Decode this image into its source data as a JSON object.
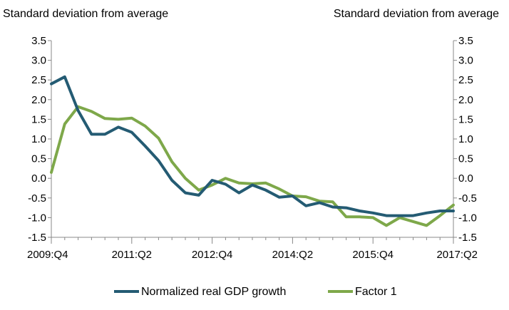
{
  "chart_data": {
    "type": "line",
    "title": "",
    "ylabel_left": "Standard deviation from average",
    "ylabel_right": "Standard deviation from average",
    "ylim": [
      -1.5,
      3.5
    ],
    "y_ticks": [
      "3.5",
      "3.0",
      "2.5",
      "2.0",
      "1.5",
      "1.0",
      "0.5",
      "0.0",
      "-0.5",
      "-1.0",
      "-1.5"
    ],
    "y_tick_values": [
      3.5,
      3.0,
      2.5,
      2.0,
      1.5,
      1.0,
      0.5,
      0.0,
      -0.5,
      -1.0,
      -1.5
    ],
    "x_tick_labels": [
      "2009:Q4",
      "2011:Q2",
      "2012:Q4",
      "2014:Q2",
      "2015:Q4",
      "2017:Q2"
    ],
    "x_tick_index": [
      0,
      6,
      12,
      18,
      24,
      30
    ],
    "x": [
      "2009:Q4",
      "2010:Q1",
      "2010:Q2",
      "2010:Q3",
      "2010:Q4",
      "2011:Q1",
      "2011:Q2",
      "2011:Q3",
      "2011:Q4",
      "2012:Q1",
      "2012:Q2",
      "2012:Q3",
      "2012:Q4",
      "2013:Q1",
      "2013:Q2",
      "2013:Q3",
      "2013:Q4",
      "2014:Q1",
      "2014:Q2",
      "2014:Q3",
      "2014:Q4",
      "2015:Q1",
      "2015:Q2",
      "2015:Q3",
      "2015:Q4",
      "2016:Q1",
      "2016:Q2",
      "2016:Q3",
      "2016:Q4",
      "2017:Q1",
      "2017:Q2"
    ],
    "grid": false,
    "legend_position": "bottom",
    "series": [
      {
        "name": "Normalized real GDP growth",
        "color": "#245b73",
        "values": [
          2.4,
          2.58,
          1.72,
          1.12,
          1.12,
          1.3,
          1.17,
          0.82,
          0.45,
          -0.05,
          -0.37,
          -0.43,
          -0.05,
          -0.15,
          -0.37,
          -0.17,
          -0.3,
          -0.48,
          -0.45,
          -0.7,
          -0.62,
          -0.73,
          -0.75,
          -0.83,
          -0.88,
          -0.95,
          -0.95,
          -0.95,
          -0.88,
          -0.83,
          -0.83
        ]
      },
      {
        "name": "Factor 1",
        "color": "#7ea84a",
        "values": [
          0.15,
          1.38,
          1.82,
          1.7,
          1.52,
          1.5,
          1.53,
          1.33,
          1.02,
          0.42,
          0.0,
          -0.3,
          -0.17,
          0.0,
          -0.12,
          -0.14,
          -0.12,
          -0.27,
          -0.45,
          -0.47,
          -0.58,
          -0.6,
          -0.98,
          -0.98,
          -1.0,
          -1.2,
          -1.0,
          -1.1,
          -1.2,
          -0.95,
          -0.68
        ]
      }
    ]
  }
}
